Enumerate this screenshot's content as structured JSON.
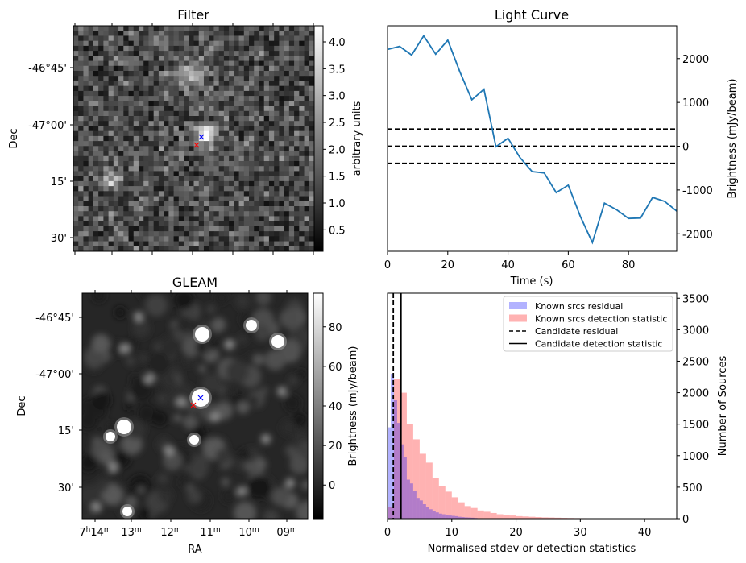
{
  "chart_data": [
    {
      "type": "heatmap",
      "title": "Filter",
      "ylabel": "Dec",
      "yticklabels": [
        "-46°45'",
        "-47°00'",
        "15'",
        "30'"
      ],
      "colorbar": {
        "label": "arbitrary units",
        "range": [
          0.1,
          4.3
        ],
        "ticks": [
          0.5,
          1.0,
          1.5,
          2.0,
          2.5,
          3.0,
          3.5,
          4.0
        ],
        "ticklabels": [
          "0.5",
          "1.0",
          "1.5",
          "2.0",
          "2.5",
          "3.0",
          "3.5",
          "4.0"
        ],
        "colormap": "gray"
      },
      "markers": [
        {
          "symbol": "x",
          "color": "#0000ff"
        },
        {
          "symbol": "x",
          "color": "#ff0000"
        }
      ]
    },
    {
      "type": "line",
      "title": "Light Curve",
      "xlabel": "Time (s)",
      "ylabel": "Brightness (mJy/beam)",
      "xlim": [
        0,
        96
      ],
      "ylim": [
        -2400,
        2750
      ],
      "xticks": [
        0,
        20,
        40,
        60,
        80
      ],
      "yticks": [
        -2000,
        -1000,
        0,
        1000,
        2000
      ],
      "series": [
        {
          "color": "#1f77b4",
          "x": [
            0,
            4,
            8,
            12,
            16,
            20,
            24,
            28,
            32,
            36,
            40,
            44,
            48,
            52,
            56,
            60,
            64,
            68,
            72,
            76,
            80,
            84,
            88,
            92,
            96
          ],
          "y": [
            2210,
            2280,
            2080,
            2520,
            2100,
            2420,
            1700,
            1060,
            1300,
            -10,
            180,
            -260,
            -580,
            -610,
            -1060,
            -890,
            -1600,
            -2200,
            -1300,
            -1450,
            -1650,
            -1640,
            -1170,
            -1260,
            -1480
          ]
        }
      ],
      "hlines": [
        {
          "y": 390,
          "style": "dashed",
          "color": "#000000"
        },
        {
          "y": 0,
          "style": "dashed",
          "color": "#000000"
        },
        {
          "y": -390,
          "style": "dashed",
          "color": "#000000"
        }
      ]
    },
    {
      "type": "heatmap",
      "title": "GLEAM",
      "xlabel": "RA",
      "ylabel": "Dec",
      "xticklabels": [
        "7h14m",
        "13m",
        "12m",
        "11m",
        "10m",
        "09m"
      ],
      "yticklabels": [
        "-46°45'",
        "-47°00'",
        "15'",
        "30'"
      ],
      "colorbar": {
        "label": "Brightness (mJy/beam)",
        "range": [
          -17,
          97
        ],
        "ticks": [
          0,
          20,
          40,
          60,
          80
        ],
        "ticklabels": [
          "0",
          "20",
          "40",
          "60",
          "80"
        ],
        "colormap": "gray"
      },
      "markers": [
        {
          "symbol": "x",
          "color": "#0000ff"
        },
        {
          "symbol": "x",
          "color": "#ff0000"
        }
      ]
    },
    {
      "type": "bar",
      "subtype": "histogram",
      "xlabel": "Normalised stdev or detection statistics",
      "ylabel": "Number of Sources",
      "xlim": [
        0,
        45
      ],
      "ylim": [
        0,
        3580
      ],
      "xticks": [
        0,
        10,
        20,
        30,
        40
      ],
      "yticks": [
        0,
        500,
        1000,
        1500,
        2000,
        2500,
        3000,
        3500
      ],
      "legend_position": "top-right",
      "series": [
        {
          "name": "Known srcs residual",
          "color": "#0000ff",
          "alpha": 0.3,
          "bin_width": 0.5,
          "bin_start": 0,
          "values": [
            1450,
            2300,
            1880,
            1520,
            1180,
            980,
            620,
            560,
            440,
            330,
            290,
            230,
            180,
            150,
            120,
            100,
            80,
            70,
            60,
            50,
            45,
            40,
            30,
            25,
            20,
            18,
            15,
            10
          ]
        },
        {
          "name": "Known srcs detection statistic",
          "color": "#ff0000",
          "alpha": 0.3,
          "bin_width": 1.0,
          "bin_start": 0,
          "values": [
            180,
            2220,
            2000,
            1500,
            1260,
            1030,
            890,
            640,
            520,
            430,
            340,
            260,
            200,
            170,
            130,
            110,
            90,
            70,
            60,
            50,
            40,
            35,
            30,
            25,
            20,
            18,
            15,
            12,
            10,
            8,
            7,
            6,
            5,
            5,
            4,
            4,
            3,
            3,
            3,
            2,
            2,
            2,
            1,
            1
          ]
        }
      ],
      "vlines": [
        {
          "name": "Candidate residual",
          "x": 0.9,
          "style": "dashed",
          "color": "#000000"
        },
        {
          "name": "Candidate detection statistic",
          "x": 2.1,
          "style": "solid",
          "color": "#000000"
        }
      ]
    }
  ]
}
